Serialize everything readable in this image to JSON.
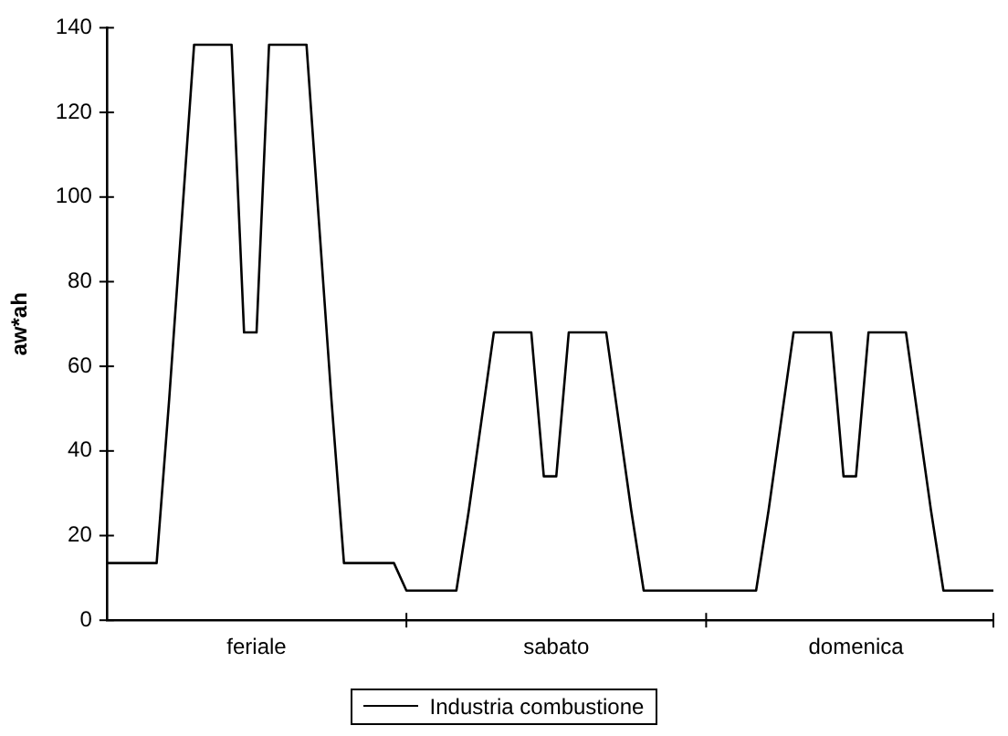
{
  "chart_data": {
    "type": "line",
    "ylabel": "aw*ah",
    "categories": [
      null,
      null,
      null,
      null,
      null,
      null,
      null,
      null,
      null,
      null,
      null,
      null,
      "feriale",
      null,
      null,
      null,
      null,
      null,
      null,
      null,
      null,
      null,
      null,
      null,
      null,
      null,
      null,
      null,
      null,
      null,
      null,
      null,
      null,
      null,
      null,
      null,
      "sabato",
      null,
      null,
      null,
      null,
      null,
      null,
      null,
      null,
      null,
      null,
      null,
      null,
      null,
      null,
      null,
      null,
      null,
      null,
      null,
      null,
      null,
      null,
      null,
      "domenica",
      null,
      null,
      null,
      null,
      null,
      null,
      null,
      null,
      null,
      null,
      null
    ],
    "series": [
      {
        "name": "Industria combustione",
        "color": "#000000",
        "values": [
          13.5,
          13.5,
          13.5,
          13.5,
          13.5,
          52,
          94,
          136,
          136,
          136,
          136,
          68,
          68,
          136,
          136,
          136,
          136,
          94,
          52,
          13.5,
          13.5,
          13.5,
          13.5,
          13.5,
          7,
          7,
          7,
          7,
          7,
          26,
          47,
          68,
          68,
          68,
          68,
          34,
          34,
          68,
          68,
          68,
          68,
          47,
          26,
          7,
          7,
          7,
          7,
          7,
          7,
          7,
          7,
          7,
          7,
          26,
          47,
          68,
          68,
          68,
          68,
          34,
          34,
          68,
          68,
          68,
          68,
          47,
          26,
          7,
          7,
          7,
          7,
          7
        ]
      }
    ],
    "ylim": [
      0,
      140
    ],
    "yticks": [
      0,
      20,
      40,
      60,
      80,
      100,
      120,
      140
    ],
    "grid": false,
    "legend": "bottom",
    "marker": "none",
    "line_style": "solid"
  }
}
